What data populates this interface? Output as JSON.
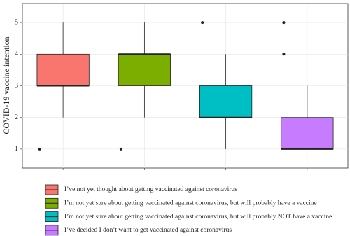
{
  "chart_data": {
    "type": "boxplot",
    "ylabel": "COVID-19 vaccine intention",
    "ylim": [
      0.4,
      5.6
    ],
    "yticks": [
      1,
      2,
      3,
      4,
      5
    ],
    "grid": true,
    "series": [
      {
        "name": "I’ve not yet thought about getting vaccinated against coronavirus",
        "color": "#f8766d",
        "whisker_low": 2,
        "q1": 3,
        "median": 3,
        "q3": 4,
        "whisker_high": 5,
        "outliers": [
          1
        ]
      },
      {
        "name": "I’m not yet sure about getting vaccinated against coronavirus, but will probably have a vaccine",
        "color": "#7cae00",
        "whisker_low": 2,
        "q1": 3,
        "median": 4,
        "q3": 4,
        "whisker_high": 5,
        "outliers": [
          1
        ]
      },
      {
        "name": "I’m not yet sure about getting vaccinated against coronavirus, but will probably NOT have a vaccine",
        "color": "#00bfc4",
        "whisker_low": 1,
        "q1": 2,
        "median": 2,
        "q3": 3,
        "whisker_high": 4,
        "outliers": [
          5
        ]
      },
      {
        "name": "I’ve decided I don’t want to get vaccinated against coronavirus",
        "color": "#c77cff",
        "whisker_low": 1,
        "q1": 1,
        "median": 1,
        "q3": 2,
        "whisker_high": 3,
        "outliers": [
          4,
          5
        ]
      }
    ]
  }
}
